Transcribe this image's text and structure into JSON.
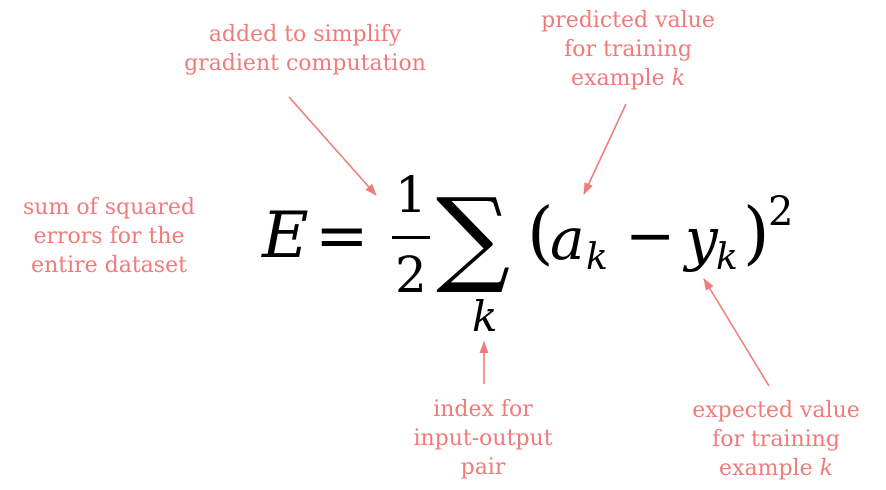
{
  "annotations": {
    "simplify": {
      "lines": [
        "added to simplify",
        "gradient computation"
      ]
    },
    "predicted": {
      "line1": "predicted value",
      "line2": "for training",
      "line3_text": "example",
      "line3_var": "k"
    },
    "sum": {
      "lines": [
        "sum of squared",
        "errors for the",
        "entire dataset"
      ]
    },
    "index": {
      "lines": [
        "index for",
        "input-output",
        "pair"
      ]
    },
    "expected": {
      "line1": "expected value",
      "line2": "for training",
      "line3_text": "example",
      "line3_var": "k"
    }
  },
  "equation": {
    "lhs": "E",
    "equals": "=",
    "frac_num": "1",
    "frac_den": "2",
    "sum_symbol": "∑",
    "sum_index": "k",
    "lparen": "(",
    "a": "a",
    "a_sub": "k",
    "minus": "−",
    "y": "y",
    "y_sub": "k",
    "rparen": ")",
    "power": "2"
  },
  "colors": {
    "annotation": "#f07b7b",
    "equation": "#000000"
  }
}
